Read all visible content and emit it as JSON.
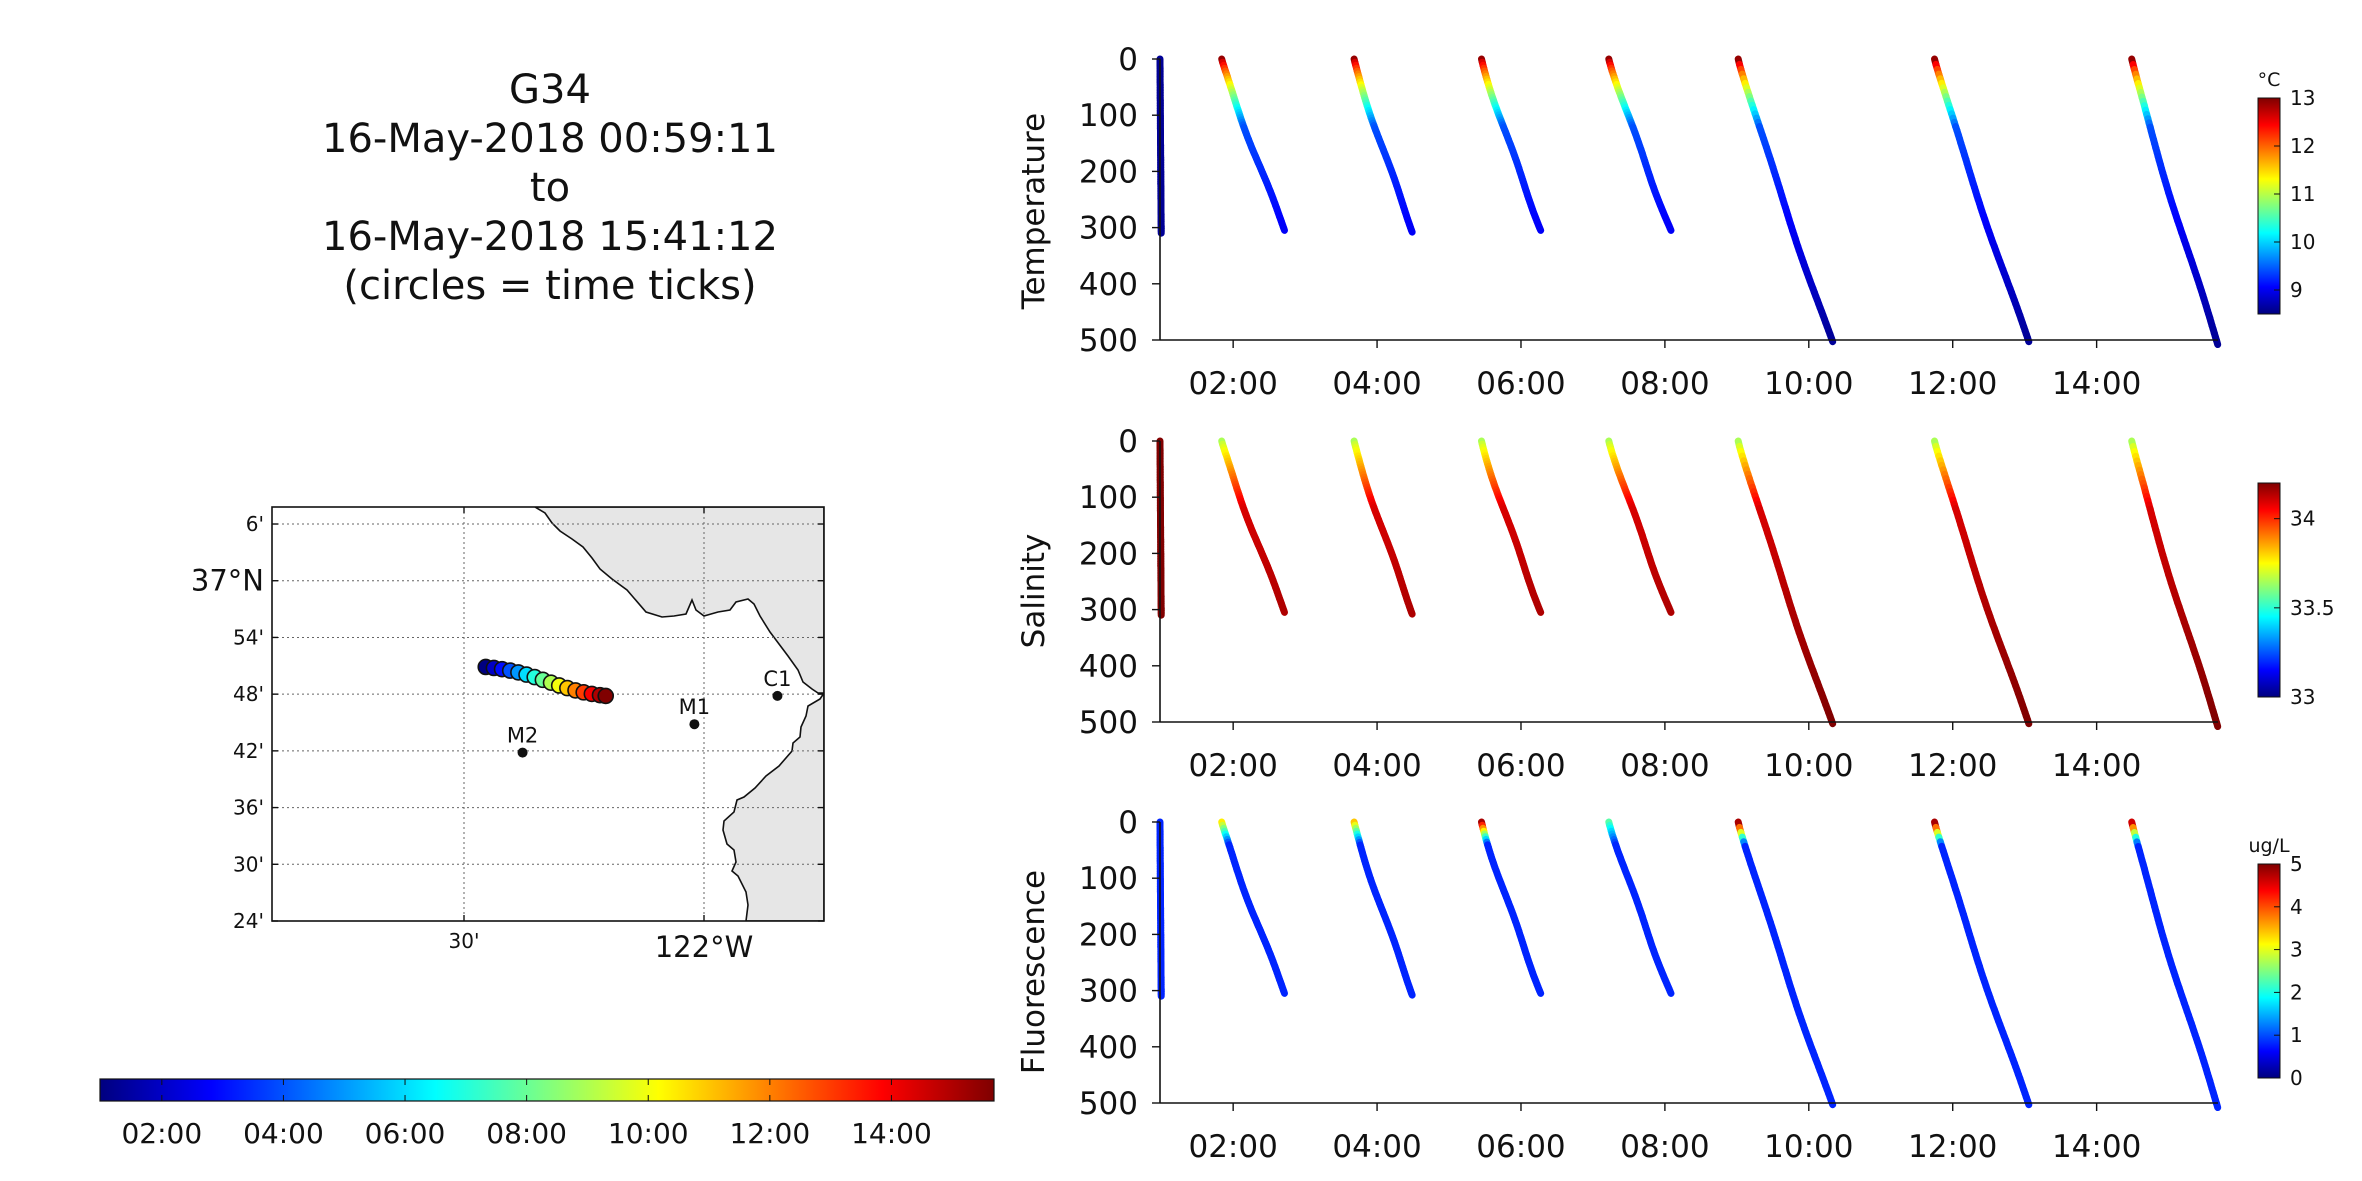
{
  "title_lines": [
    "G34",
    "16-May-2018 00:59:11",
    "to",
    "16-May-2018 15:41:12",
    "(circles = time ticks)"
  ],
  "chart_data": [
    {
      "type": "scatter",
      "name": "map",
      "lon_ticks": [
        {
          "lon": -122.5,
          "label": "30'"
        },
        {
          "lon": -122.0,
          "label": "122°W"
        }
      ],
      "lat_ticks": [
        {
          "lat": 37.1,
          "label": "6'"
        },
        {
          "lat": 37.0,
          "label": "37°N"
        },
        {
          "lat": 36.9,
          "label": "54'"
        },
        {
          "lat": 36.8,
          "label": "48'"
        },
        {
          "lat": 36.7,
          "label": "42'"
        },
        {
          "lat": 36.6,
          "label": "36'"
        },
        {
          "lat": 36.5,
          "label": "30'"
        },
        {
          "lat": 36.4,
          "label": "24'"
        }
      ],
      "lon_range": [
        -122.9,
        -121.75
      ],
      "lat_range": [
        36.4,
        37.13
      ],
      "grid": true,
      "stations": [
        {
          "name": "M1",
          "lon": -122.02,
          "lat": 36.747
        },
        {
          "name": "C1",
          "lon": -121.847,
          "lat": 36.797
        },
        {
          "name": "M2",
          "lon": -122.378,
          "lat": 36.697
        }
      ],
      "track_start": [
        -122.455,
        36.848
      ],
      "track_end": [
        -122.205,
        36.798
      ],
      "time_tick_hours": [
        1,
        2,
        3,
        4,
        5,
        6,
        7,
        8,
        9,
        10,
        11,
        12,
        13,
        14,
        15,
        15.7
      ],
      "time_colorbar": {
        "range_hours": [
          0.9833,
          15.6867
        ],
        "tick_hours": [
          2,
          4,
          6,
          8,
          10,
          12,
          14
        ],
        "tick_labels": [
          "02:00",
          "04:00",
          "06:00",
          "08:00",
          "10:00",
          "12:00",
          "14:00"
        ]
      }
    },
    {
      "type": "scatter",
      "ylabel": "Temperature",
      "xlim": [
        0.9833,
        15.6867
      ],
      "ylim": [
        0,
        500
      ],
      "xticks": [
        2,
        4,
        6,
        8,
        10,
        12,
        14
      ],
      "xtick_labels": [
        "02:00",
        "04:00",
        "06:00",
        "08:00",
        "10:00",
        "12:00",
        "14:00"
      ],
      "yticks": [
        0,
        100,
        200,
        300,
        400,
        500
      ],
      "colorbar": {
        "unit": "°C",
        "range": [
          8.5,
          13
        ],
        "ticks": [
          9,
          10,
          11,
          12,
          13
        ],
        "tick_labels": [
          "9",
          "10",
          "11",
          "12",
          "13"
        ]
      },
      "value_top": 12.9,
      "value_bottom": 8.6
    },
    {
      "type": "scatter",
      "ylabel": "Salinity",
      "xlim": [
        0.9833,
        15.6867
      ],
      "ylim": [
        0,
        500
      ],
      "xticks": [
        2,
        4,
        6,
        8,
        10,
        12,
        14
      ],
      "xtick_labels": [
        "02:00",
        "04:00",
        "06:00",
        "08:00",
        "10:00",
        "12:00",
        "14:00"
      ],
      "yticks": [
        0,
        100,
        200,
        300,
        400,
        500
      ],
      "colorbar": {
        "unit": "",
        "range": [
          33,
          34.2
        ],
        "ticks": [
          33,
          33.5,
          34
        ],
        "tick_labels": [
          "33",
          "33.5",
          "34"
        ]
      },
      "value_top": 33.65,
      "value_bottom": 34.2
    },
    {
      "type": "scatter",
      "ylabel": "Fluorescence",
      "xlim": [
        0.9833,
        15.6867
      ],
      "ylim": [
        0,
        500
      ],
      "xticks": [
        2,
        4,
        6,
        8,
        10,
        12,
        14
      ],
      "xtick_labels": [
        "02:00",
        "04:00",
        "06:00",
        "08:00",
        "10:00",
        "12:00",
        "14:00"
      ],
      "yticks": [
        0,
        100,
        200,
        300,
        400,
        500
      ],
      "colorbar": {
        "unit": "ug/L",
        "range": [
          0,
          5
        ],
        "ticks": [
          0,
          1,
          2,
          3,
          4,
          5
        ],
        "tick_labels": [
          "0",
          "1",
          "2",
          "3",
          "4",
          "5"
        ]
      },
      "value_top": 0.8,
      "value_bottom": 0.8,
      "surface_values": [
        3.2,
        3.4,
        4.8,
        2.3,
        4.8,
        4.8,
        4.6
      ]
    }
  ],
  "dives": [
    {
      "start": 0.9833,
      "end": 1.0,
      "max_depth": 310
    },
    {
      "start": 1.83,
      "end": 2.72,
      "max_depth": 305
    },
    {
      "start": 3.67,
      "end": 4.5,
      "max_depth": 308
    },
    {
      "start": 5.45,
      "end": 6.28,
      "max_depth": 305
    },
    {
      "start": 7.23,
      "end": 8.08,
      "max_depth": 305
    },
    {
      "start": 9.03,
      "end": 10.32,
      "max_depth": 503
    },
    {
      "start": 11.75,
      "end": 13.05,
      "max_depth": 503
    },
    {
      "start": 14.48,
      "end": 15.686,
      "max_depth": 508
    }
  ]
}
